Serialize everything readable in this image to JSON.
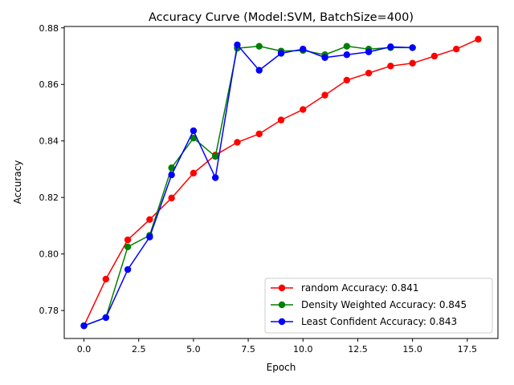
{
  "chart_data": {
    "type": "line",
    "title": "Accuracy Curve (Model:SVM, BatchSize=400)",
    "xlabel": "Epoch",
    "ylabel": "Accuracy",
    "xlim": [
      -0.9,
      18.9
    ],
    "ylim": [
      0.7701,
      0.8805
    ],
    "xticks": [
      0.0,
      2.5,
      5.0,
      7.5,
      10.0,
      12.5,
      15.0,
      17.5
    ],
    "xtick_labels": [
      "0.0",
      "2.5",
      "5.0",
      "7.5",
      "10.0",
      "12.5",
      "15.0",
      "17.5"
    ],
    "yticks": [
      0.78,
      0.8,
      0.82,
      0.84,
      0.86,
      0.88
    ],
    "ytick_labels": [
      "0.78",
      "0.80",
      "0.82",
      "0.84",
      "0.86",
      "0.88"
    ],
    "grid": false,
    "legend_position": "lower-right",
    "series": [
      {
        "name": "random Accuracy: 0.841",
        "color": "#ff0000",
        "x": [
          0,
          1,
          2,
          3,
          4,
          5,
          6,
          7,
          8,
          9,
          10,
          11,
          12,
          13,
          14,
          15,
          16,
          17,
          18
        ],
        "y": [
          0.7746,
          0.7911,
          0.805,
          0.8122,
          0.8198,
          0.8286,
          0.835,
          0.8395,
          0.8425,
          0.8474,
          0.8511,
          0.8562,
          0.8615,
          0.864,
          0.8665,
          0.8675,
          0.87,
          0.8725,
          0.876
        ]
      },
      {
        "name": "Density Weighted Accuracy: 0.845",
        "color": "#008000",
        "x": [
          0,
          1,
          2,
          3,
          4,
          5,
          6,
          7,
          8,
          9,
          10,
          11,
          12,
          13,
          14,
          15
        ],
        "y": [
          0.7746,
          0.7775,
          0.8025,
          0.8066,
          0.8305,
          0.841,
          0.8345,
          0.8728,
          0.8735,
          0.8718,
          0.872,
          0.8705,
          0.8735,
          0.8725,
          0.873,
          0.873
        ]
      },
      {
        "name": "Least Confident Accuracy: 0.843",
        "color": "#0000ff",
        "x": [
          0,
          1,
          2,
          3,
          4,
          5,
          6,
          7,
          8,
          9,
          10,
          11,
          12,
          13,
          14,
          15
        ],
        "y": [
          0.7746,
          0.7775,
          0.7945,
          0.806,
          0.828,
          0.8436,
          0.827,
          0.874,
          0.865,
          0.871,
          0.8725,
          0.8695,
          0.8705,
          0.8715,
          0.8733,
          0.873
        ]
      }
    ]
  }
}
